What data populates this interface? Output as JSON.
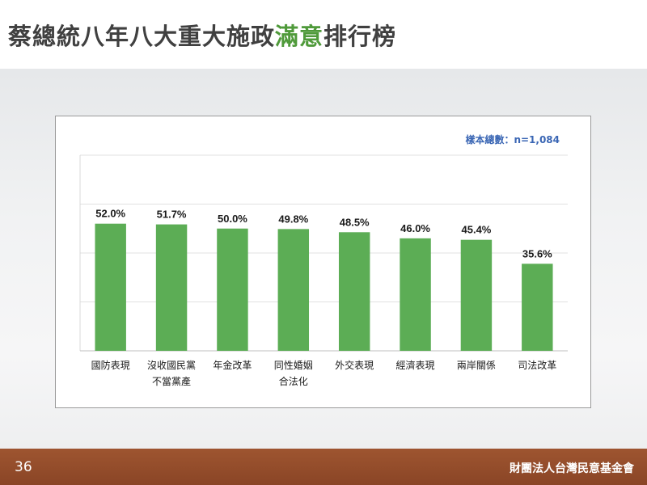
{
  "slide": {
    "title_prefix": "蔡總統八年八大重大施政",
    "title_highlight": "滿意",
    "title_suffix": "排行榜",
    "page_number": "36",
    "organization": "財團法人台灣民意基金會"
  },
  "colors": {
    "bar": "#5cad55",
    "title_highlight": "#4f9a3a",
    "footer": "#9e5530",
    "sample_text": "#3a66b4"
  },
  "chart_data": {
    "type": "bar",
    "title": "",
    "sample_note": "樣本總數：n=1,084",
    "categories": [
      "國防表現",
      "沒收國民黨\n不當黨產",
      "年金改革",
      "同性婚姻\n合法化",
      "外交表現",
      "經濟表現",
      "兩岸關係",
      "司法改革"
    ],
    "values": [
      52.0,
      51.7,
      50.0,
      49.8,
      48.5,
      46.0,
      45.4,
      35.6
    ],
    "value_labels": [
      "52.0%",
      "51.7%",
      "50.0%",
      "49.8%",
      "48.5%",
      "46.0%",
      "45.4%",
      "35.6%"
    ],
    "ylim": [
      0,
      80
    ],
    "grid": true,
    "legend": false
  }
}
